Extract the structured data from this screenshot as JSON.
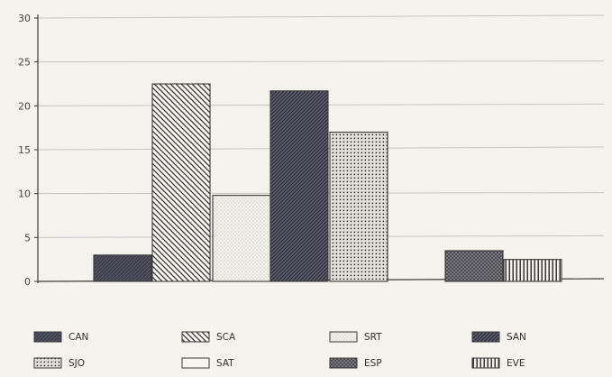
{
  "chart_data": {
    "type": "bar",
    "title": "",
    "xlabel": "",
    "ylabel": "",
    "ylim": [
      0,
      30
    ],
    "yticks": [
      0,
      5,
      10,
      15,
      20,
      25,
      30
    ],
    "grid": "horizontal",
    "legend_position": "bottom",
    "series": [
      {
        "name": "CAN",
        "value": 3.0,
        "pattern": "solid-dark"
      },
      {
        "name": "SCA",
        "value": 22.5,
        "pattern": "diagonal-back"
      },
      {
        "name": "SRT",
        "value": 9.8,
        "pattern": "light-dots"
      },
      {
        "name": "SAN",
        "value": 21.7,
        "pattern": "diagonal-dark"
      },
      {
        "name": "SJO",
        "value": 17.0,
        "pattern": "dotted-grid"
      },
      {
        "name": "SAT",
        "value": 0.0,
        "pattern": "blank"
      },
      {
        "name": "ESP",
        "value": 3.5,
        "pattern": "crosshatch"
      },
      {
        "name": "EVE",
        "value": 2.5,
        "pattern": "vertical-lines"
      }
    ]
  },
  "colors": {
    "background": "#f4f3ee",
    "ink": "#3a3a3a",
    "grid": "#c4c4c4"
  }
}
